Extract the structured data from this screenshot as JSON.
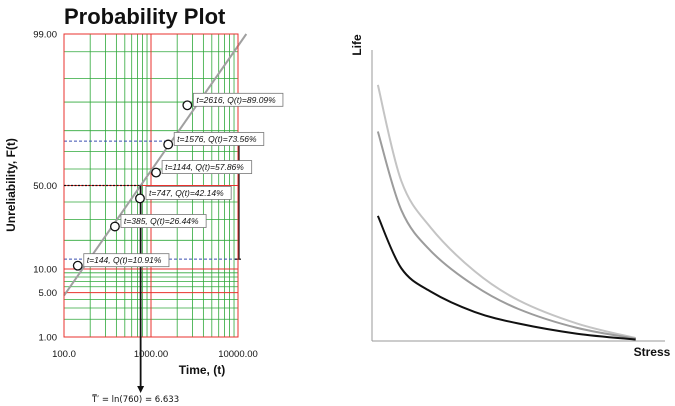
{
  "chart_data": [
    {
      "type": "scatter",
      "title": "Probability Plot",
      "xlabel": "Time, (t)",
      "ylabel": "Unreliability, F(t)",
      "x_scale": "log",
      "y_scale": "lognormal-probability",
      "xlim": [
        100,
        10000
      ],
      "ylim": [
        1,
        99
      ],
      "x_ticks": [
        "100.0",
        "1000.00",
        "10000.00"
      ],
      "y_ticks": [
        "1.00",
        "5.00",
        "10.00",
        "50.00",
        "99.00"
      ],
      "x_tick_values": [
        100,
        1000,
        10000
      ],
      "y_tick_values": [
        1,
        5,
        10,
        50,
        99
      ],
      "points": [
        {
          "x": 144,
          "y": 10.91,
          "label": "t=144, Q(t)=10.91%"
        },
        {
          "x": 385,
          "y": 26.44,
          "label": "t=385, Q(t)=26.44%"
        },
        {
          "x": 747,
          "y": 42.14,
          "label": "t=747, Q(t)=42.14%"
        },
        {
          "x": 1144,
          "y": 57.86,
          "label": "t=1144, Q(t)=57.86%"
        },
        {
          "x": 1576,
          "y": 73.56,
          "label": "t=1576, Q(t)=73.56%"
        },
        {
          "x": 2616,
          "y": 89.09,
          "label": "t=2616, Q(t)=89.09%"
        }
      ],
      "median_time": 760,
      "annotation": "T̅′ = ln(760) = 6.633",
      "colors": {
        "grid_major": "#e8322d",
        "grid_minor": "#2fa83a",
        "fit_line": "#a0a0a0",
        "confidence": "#3a4fb0"
      }
    },
    {
      "type": "line",
      "xlabel": "Stress",
      "ylabel": "Life",
      "grid": false,
      "series": [
        {
          "color": "#c4c4c4",
          "values": [
            [
              0.02,
              0.88
            ],
            [
              0.1,
              0.55
            ],
            [
              0.2,
              0.39
            ],
            [
              0.35,
              0.24
            ],
            [
              0.5,
              0.14
            ],
            [
              0.7,
              0.06
            ],
            [
              0.9,
              0.01
            ]
          ]
        },
        {
          "color": "#9c9c9c",
          "values": [
            [
              0.02,
              0.72
            ],
            [
              0.1,
              0.45
            ],
            [
              0.2,
              0.31
            ],
            [
              0.35,
              0.19
            ],
            [
              0.5,
              0.11
            ],
            [
              0.7,
              0.045
            ],
            [
              0.9,
              0.008
            ]
          ]
        },
        {
          "color": "#111111",
          "values": [
            [
              0.02,
              0.43
            ],
            [
              0.1,
              0.25
            ],
            [
              0.2,
              0.17
            ],
            [
              0.35,
              0.1
            ],
            [
              0.5,
              0.06
            ],
            [
              0.7,
              0.025
            ],
            [
              0.9,
              0.005
            ]
          ]
        }
      ]
    }
  ]
}
